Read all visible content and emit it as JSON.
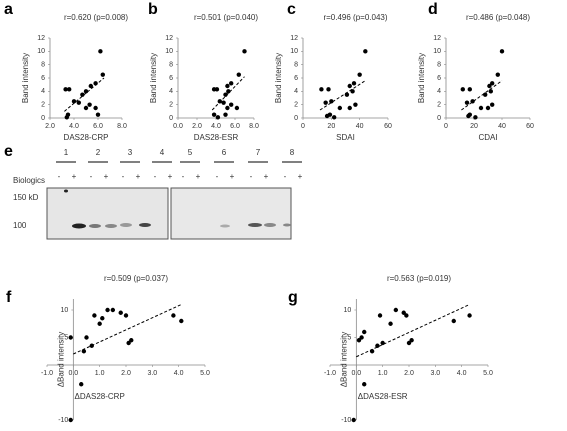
{
  "chart_data": [
    {
      "type": "scatter",
      "panel": "a",
      "title": "r=0.620 (p=0.008)",
      "x_label": "DAS28-CRP",
      "y_label": "Band intensity",
      "x": [
        6.2,
        6.4,
        5.8,
        5.4,
        3.3,
        3.6,
        5.0,
        4.7,
        4.0,
        4.4,
        5.3,
        5.0,
        5.8,
        6.0,
        3.5,
        3.4
      ],
      "values": [
        10,
        6.5,
        5.2,
        4.8,
        4.3,
        4.3,
        4.0,
        3.5,
        2.5,
        2.3,
        2.0,
        1.5,
        1.5,
        0.5,
        0.5,
        0.1
      ],
      "trendline": {
        "x": [
          3.2,
          6.5
        ],
        "y": [
          1.0,
          6.0
        ]
      },
      "color": "#000000",
      "xlim": [
        2,
        8
      ],
      "xticks": [
        {
          "value": 2,
          "label": "2.0"
        },
        {
          "value": 4,
          "label": "4.0"
        },
        {
          "value": 6,
          "label": "6.0"
        },
        {
          "value": 8,
          "label": "8.0"
        }
      ],
      "ylim": [
        0,
        12
      ],
      "yticks": [
        0,
        2,
        4,
        6,
        8,
        10,
        12
      ]
    },
    {
      "type": "scatter",
      "panel": "b",
      "title": "r=0.501 (p=0.040)",
      "x_label": "DAS28-ESR",
      "y_label": "Band intensity",
      "x": [
        7.0,
        6.4,
        5.6,
        5.2,
        3.8,
        4.1,
        5.3,
        5.0,
        4.4,
        4.8,
        5.6,
        5.2,
        6.2,
        5.0,
        3.8,
        4.2
      ],
      "values": [
        10,
        6.5,
        5.2,
        4.8,
        4.3,
        4.3,
        4.0,
        3.5,
        2.5,
        2.3,
        2.0,
        1.5,
        1.5,
        0.5,
        0.5,
        0.1
      ],
      "trendline": {
        "x": [
          3.6,
          7.0
        ],
        "y": [
          1.2,
          6.2
        ]
      },
      "color": "#000000",
      "xlim": [
        0,
        8
      ],
      "xticks": [
        {
          "value": 0,
          "label": "0.0"
        },
        {
          "value": 2,
          "label": "2.0"
        },
        {
          "value": 4,
          "label": "4.0"
        },
        {
          "value": 6,
          "label": "6.0"
        },
        {
          "value": 8,
          "label": "8.0"
        }
      ],
      "ylim": [
        0,
        12
      ],
      "yticks": [
        0,
        2,
        4,
        6,
        8,
        10,
        12
      ]
    },
    {
      "type": "scatter",
      "panel": "c",
      "title": "r=0.496 (p=0.043)",
      "x_label": "SDAI",
      "y_label": "Band intensity",
      "x": [
        44,
        40,
        36,
        33,
        13,
        18,
        35,
        31,
        20,
        16,
        37,
        33,
        26,
        19,
        17,
        22
      ],
      "values": [
        10,
        6.5,
        5.2,
        4.8,
        4.3,
        4.3,
        4.0,
        3.5,
        2.5,
        2.3,
        2.0,
        1.5,
        1.5,
        0.5,
        0.3,
        0.1
      ],
      "trendline": {
        "x": [
          12,
          44
        ],
        "y": [
          1.2,
          5.6
        ]
      },
      "color": "#000000",
      "xlim": [
        0,
        60
      ],
      "xticks": [
        0,
        20,
        40,
        60
      ],
      "ylim": [
        0,
        12
      ],
      "yticks": [
        0,
        2,
        4,
        6,
        8,
        10,
        12
      ]
    },
    {
      "type": "scatter",
      "panel": "d",
      "title": "r=0.486 (p=0.048)",
      "x_label": "CDAI",
      "y_label": "Band intensity",
      "x": [
        40,
        37,
        33,
        31,
        12,
        17,
        32,
        28,
        19,
        15,
        33,
        30,
        25,
        17,
        16,
        21
      ],
      "values": [
        10,
        6.5,
        5.2,
        4.8,
        4.3,
        4.3,
        4.0,
        3.5,
        2.5,
        2.3,
        2.0,
        1.5,
        1.5,
        0.5,
        0.3,
        0.1
      ],
      "trendline": {
        "x": [
          11,
          40
        ],
        "y": [
          1.2,
          5.6
        ]
      },
      "color": "#000000",
      "xlim": [
        0,
        60
      ],
      "xticks": [
        0,
        20,
        40,
        60
      ],
      "ylim": [
        0,
        12
      ],
      "yticks": [
        0,
        2,
        4,
        6,
        8,
        10,
        12
      ]
    },
    {
      "type": "scatter",
      "panel": "f",
      "title": "r=0.509 (p=0.037)",
      "x_label": "ΔDAS28-CRP",
      "y_label": "ΔBand intensity",
      "x": [
        4.1,
        3.8,
        2.2,
        2.1,
        2.0,
        1.8,
        1.5,
        1.3,
        1.0,
        1.1,
        0.8,
        0.7,
        0.5,
        0.4,
        0.3,
        -0.1,
        -0.1
      ],
      "values": [
        8,
        9,
        4.5,
        4,
        9,
        9.5,
        10,
        10,
        7.5,
        8.5,
        9,
        3.5,
        5,
        2.5,
        -3.5,
        5,
        -10
      ],
      "trendline": {
        "x": [
          0,
          4.1
        ],
        "y": [
          2,
          11
        ]
      },
      "color": "#000000",
      "xlim": [
        -1,
        5
      ],
      "xticks": [
        {
          "value": -1,
          "label": "-1.0"
        },
        {
          "value": 0,
          "label": "0.0"
        },
        {
          "value": 1,
          "label": "1.0"
        },
        {
          "value": 2,
          "label": "2.0"
        },
        {
          "value": 3,
          "label": "3.0"
        },
        {
          "value": 4,
          "label": "4.0"
        },
        {
          "value": 5,
          "label": "5.0"
        }
      ],
      "ylim": [
        -10,
        12
      ],
      "yticks": [
        -10,
        5,
        10
      ]
    },
    {
      "type": "scatter",
      "panel": "g",
      "title": "r=0.563 (p=0.019)",
      "x_label": "ΔDAS28-ESR",
      "y_label": "ΔBand intensity",
      "x": [
        4.3,
        3.7,
        2.1,
        2.0,
        1.9,
        1.8,
        1.5,
        1.3,
        0.9,
        1.0,
        0.8,
        0.6,
        0.3,
        0.2,
        0.3,
        0.1,
        -0.1
      ],
      "values": [
        9,
        8,
        4.5,
        4,
        9,
        9.5,
        10,
        7.5,
        9,
        4,
        3.5,
        2.5,
        6,
        5,
        -3.5,
        4.5,
        -10
      ],
      "trendline": {
        "x": [
          0,
          4.3
        ],
        "y": [
          1.5,
          11
        ]
      },
      "color": "#000000",
      "xlim": [
        -1,
        5
      ],
      "xticks": [
        {
          "value": -1,
          "label": "-1.0"
        },
        {
          "value": 0,
          "label": "0.0"
        },
        {
          "value": 1,
          "label": "1.0"
        },
        {
          "value": 2,
          "label": "2.0"
        },
        {
          "value": 3,
          "label": "3.0"
        },
        {
          "value": 4,
          "label": "4.0"
        },
        {
          "value": 5,
          "label": "5.0"
        }
      ],
      "ylim": [
        -10,
        12
      ],
      "yticks": [
        -10,
        5,
        10
      ]
    }
  ],
  "blot": {
    "panel": "e",
    "lanes": [
      "1",
      "2",
      "3",
      "4",
      "5",
      "6",
      "7",
      "8"
    ],
    "row_label": "Biologics",
    "signs": [
      "-",
      "+",
      "-",
      "+",
      "-",
      "+",
      "-",
      "+",
      "-",
      "+",
      "-",
      "+",
      "-",
      "+",
      "-",
      "+"
    ],
    "markers": [
      "150 kD",
      "100"
    ]
  }
}
